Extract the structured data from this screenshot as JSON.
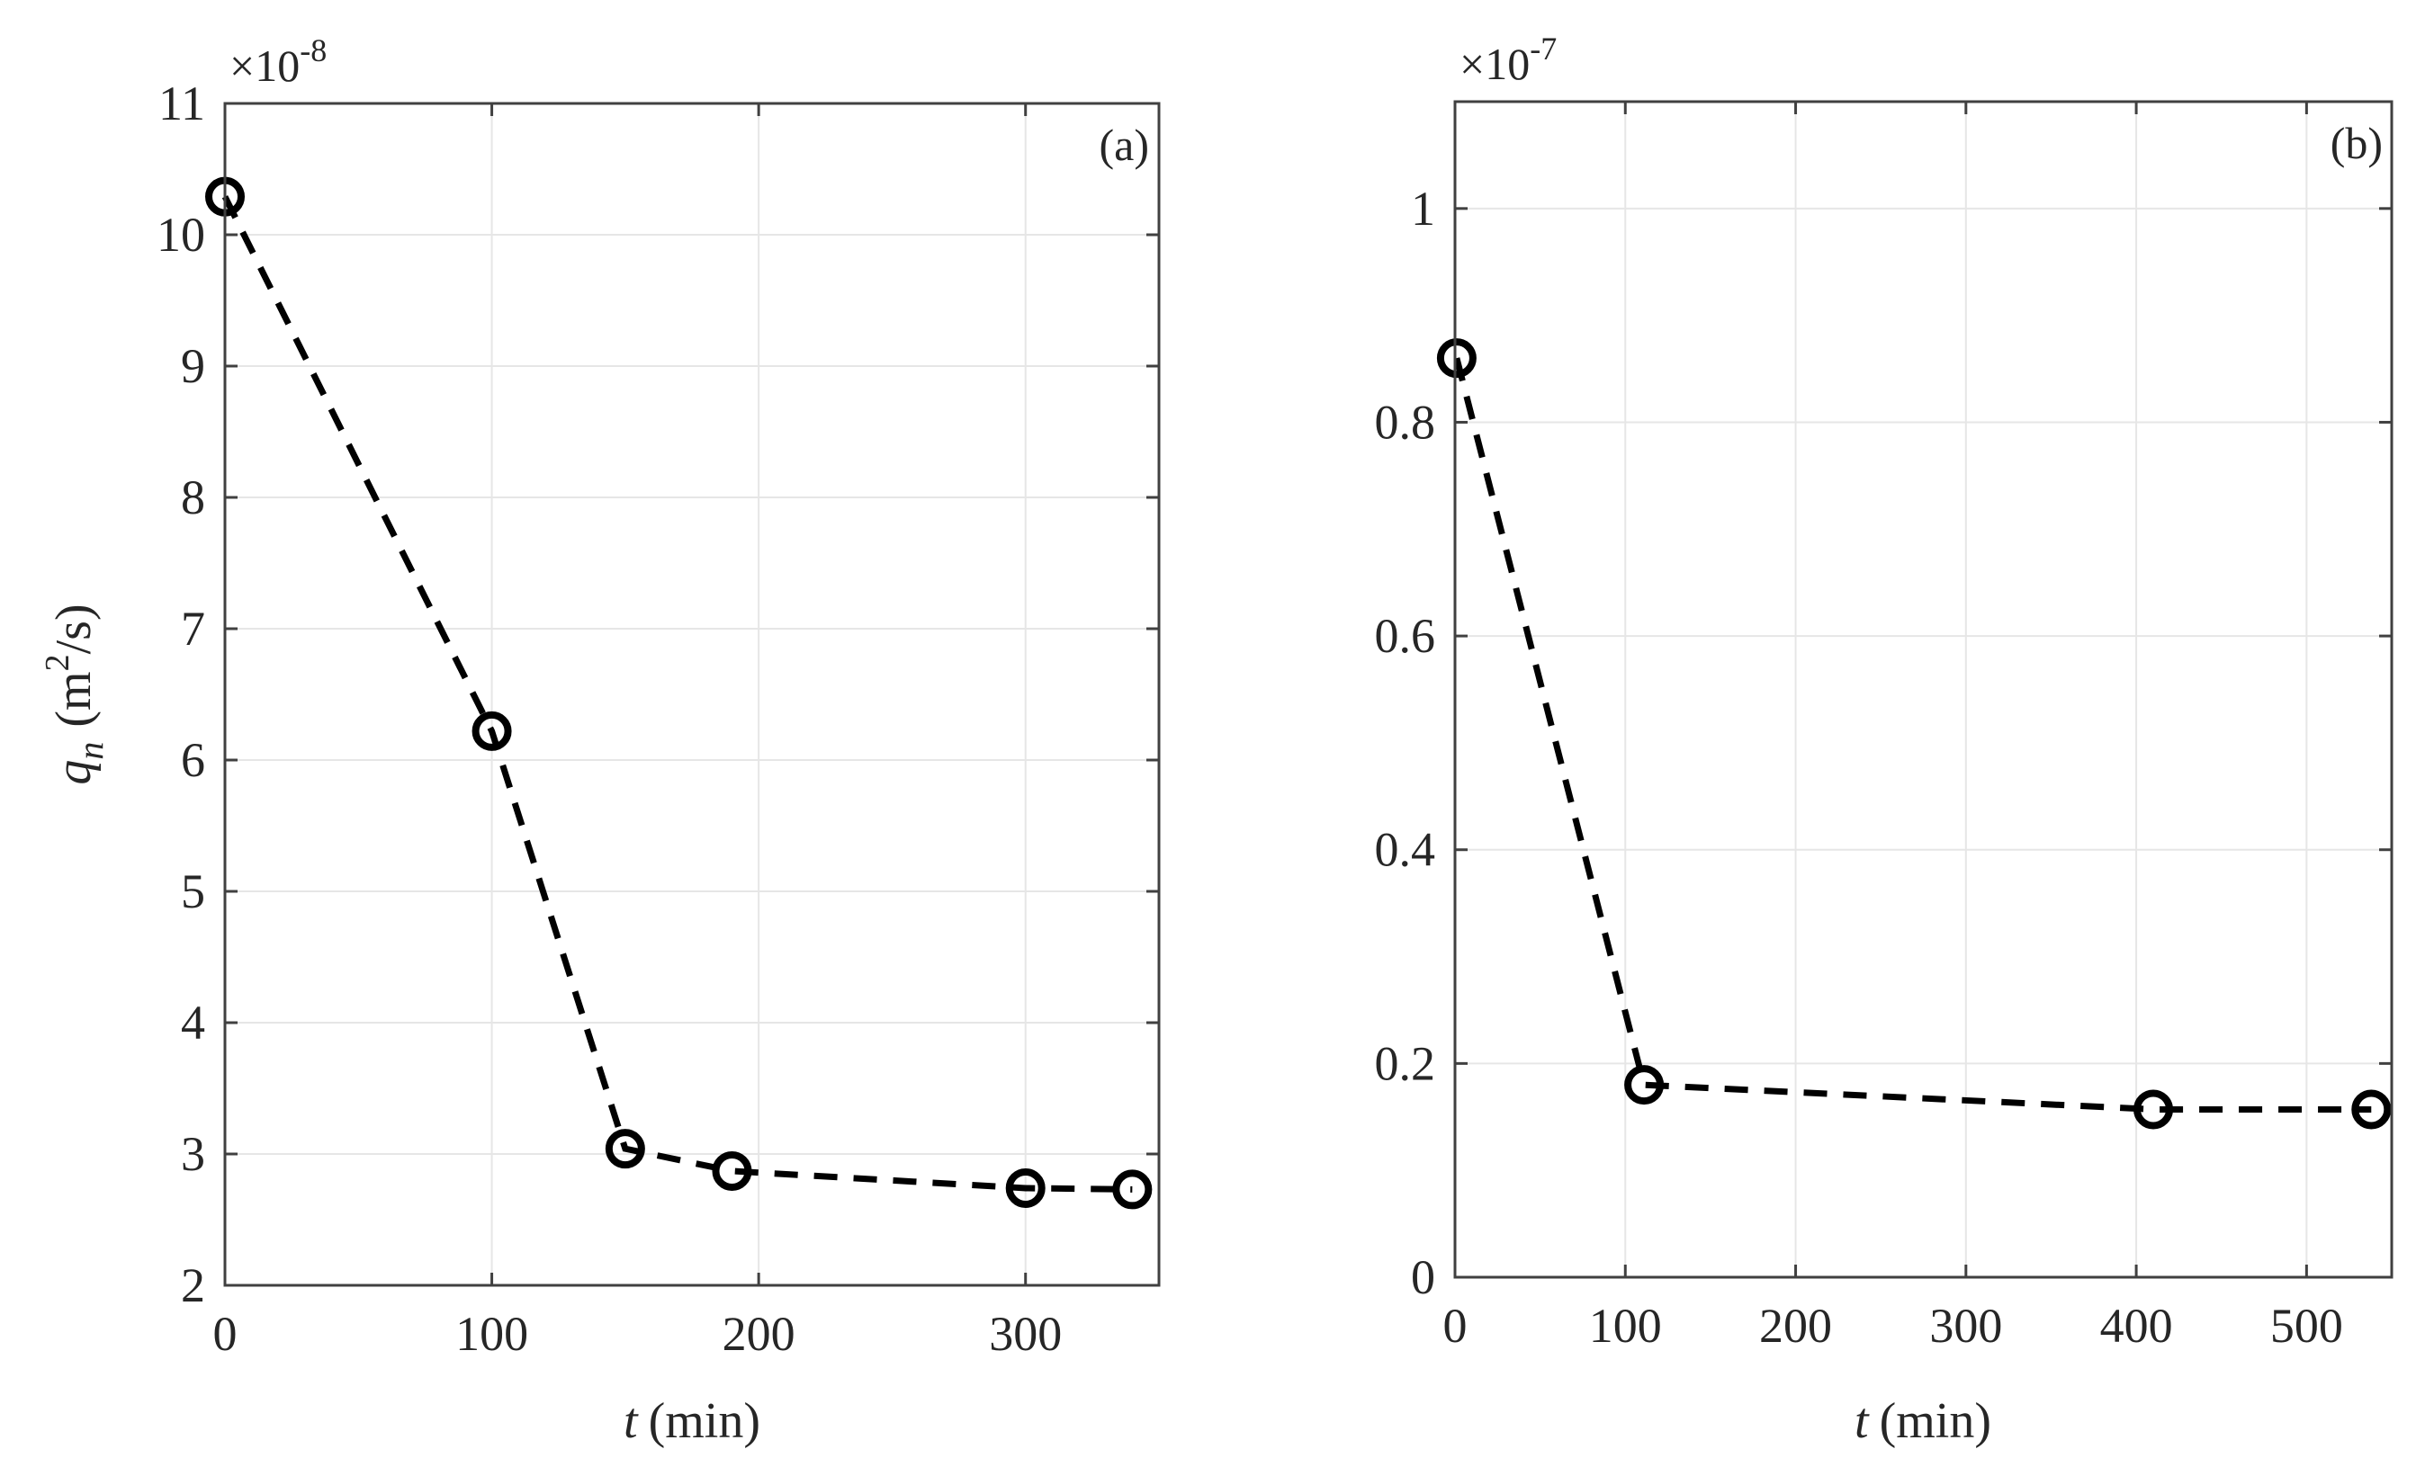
{
  "figure": {
    "ylabel_main": "q",
    "ylabel_sub": "n",
    "ylabel_unit_pre": "(m",
    "ylabel_unit_sup": "2",
    "ylabel_unit_post": "/s)",
    "xlabel_italic": "t",
    "xlabel_rest": "(min)"
  },
  "panels": [
    {
      "id": "a",
      "panel_label": "(a)",
      "exponent_base": "×10",
      "exponent_power": "-8",
      "xlim": [
        0,
        350
      ],
      "ylim": [
        2,
        11
      ],
      "xticks": [
        0,
        100,
        200,
        300
      ],
      "yticks": [
        2,
        3,
        4,
        5,
        6,
        7,
        8,
        9,
        10,
        11
      ],
      "ytick_labels": [
        "2",
        "3",
        "4",
        "5",
        "6",
        "7",
        "8",
        "9",
        "10",
        "11"
      ],
      "xtick_labels": [
        "0",
        "100",
        "200",
        "300"
      ]
    },
    {
      "id": "b",
      "panel_label": "(b)",
      "exponent_base": "×10",
      "exponent_power": "-7",
      "xlim": [
        0,
        550
      ],
      "ylim": [
        0,
        1.1
      ],
      "xticks": [
        0,
        100,
        200,
        300,
        400,
        500
      ],
      "yticks": [
        0,
        0.2,
        0.4,
        0.6,
        0.8,
        1
      ],
      "ytick_labels": [
        "0",
        "0.2",
        "0.4",
        "0.6",
        "0.8",
        "1"
      ],
      "xtick_labels": [
        "0",
        "100",
        "200",
        "300",
        "400",
        "500"
      ]
    }
  ],
  "chart_data": [
    {
      "type": "line",
      "title": "(a)",
      "xlabel": "t (min)",
      "ylabel": "q_n (m^2/s)",
      "y_multiplier": "1e-8",
      "xlim": [
        0,
        350
      ],
      "ylim": [
        2,
        11
      ],
      "grid": true,
      "legend": null,
      "series": [
        {
          "name": "q_n",
          "style": "dashed black line with open circle markers",
          "x": [
            0,
            100,
            150,
            190,
            300,
            340
          ],
          "y": [
            10.29,
            6.22,
            3.04,
            2.87,
            2.74,
            2.73
          ]
        }
      ]
    },
    {
      "type": "line",
      "title": "(b)",
      "xlabel": "t (min)",
      "ylabel": "",
      "y_multiplier": "1e-7",
      "xlim": [
        0,
        550
      ],
      "ylim": [
        0,
        1.1
      ],
      "grid": true,
      "legend": null,
      "series": [
        {
          "name": "q_n",
          "style": "dashed black line with open circle markers",
          "x": [
            1,
            111,
            410,
            538
          ],
          "y": [
            0.86,
            0.18,
            0.157,
            0.157
          ]
        }
      ]
    }
  ],
  "colors": {
    "axis": "#404040",
    "grid": "#e6e6e6",
    "series": "#000000",
    "text": "#262626"
  }
}
